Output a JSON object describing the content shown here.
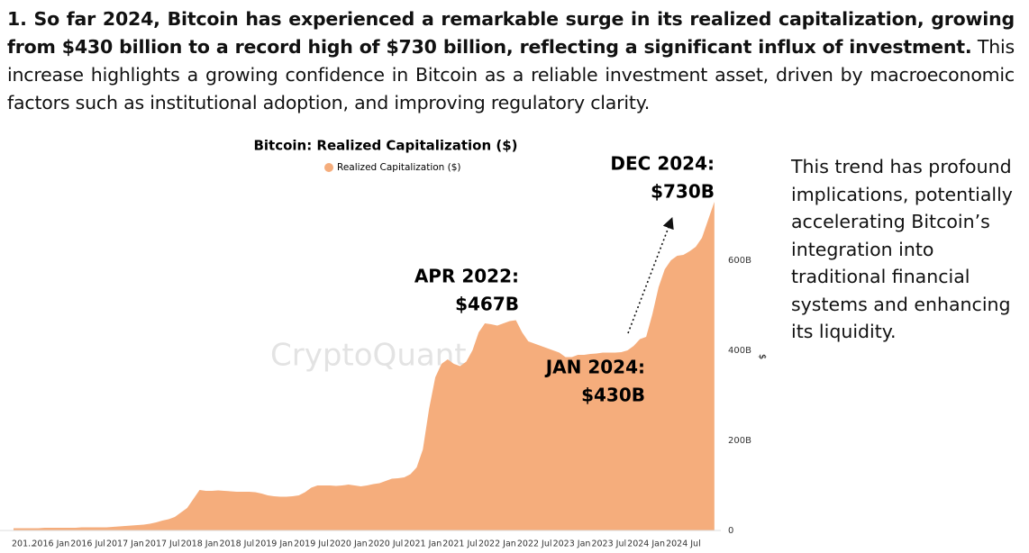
{
  "paragraph": {
    "bold": "1. So far 2024, Bitcoin has experienced a remarkable surge in its realized capitalization, growing from $430 billion to a record high of $730 billion, reflecting a significant influx of investment.",
    "normal": "This increase highlights a growing confidence in Bitcoin as a reliable investment asset, driven by macroeconomic factors such as institutional adoption, and improving regulatory clarity."
  },
  "side_text": "This trend has profound implications, potentially accelerating Bitcoin’s integration into traditional financial systems and enhancing its liquidity.",
  "chart_data": {
    "type": "area",
    "title": "Bitcoin: Realized Capitalization ($)",
    "y_label": "$",
    "watermark": "CryptoQuant",
    "grid": false,
    "legend": "top",
    "x": [
      "2015 Jul",
      "2015 Aug",
      "2015 Sep",
      "2015 Oct",
      "2015 Nov",
      "2015 Dec",
      "2016 Jan",
      "2016 Feb",
      "2016 Mar",
      "2016 Apr",
      "2016 May",
      "2016 Jun",
      "2016 Jul",
      "2016 Aug",
      "2016 Sep",
      "2016 Oct",
      "2016 Nov",
      "2016 Dec",
      "2017 Jan",
      "2017 Feb",
      "2017 Mar",
      "2017 Apr",
      "2017 May",
      "2017 Jun",
      "2017 Jul",
      "2017 Aug",
      "2017 Sep",
      "2017 Oct",
      "2017 Nov",
      "2017 Dec",
      "2018 Jan",
      "2018 Feb",
      "2018 Mar",
      "2018 Apr",
      "2018 May",
      "2018 Jun",
      "2018 Jul",
      "2018 Aug",
      "2018 Sep",
      "2018 Oct",
      "2018 Nov",
      "2018 Dec",
      "2019 Jan",
      "2019 Feb",
      "2019 Mar",
      "2019 Apr",
      "2019 May",
      "2019 Jun",
      "2019 Jul",
      "2019 Aug",
      "2019 Sep",
      "2019 Oct",
      "2019 Nov",
      "2019 Dec",
      "2020 Jan",
      "2020 Feb",
      "2020 Mar",
      "2020 Apr",
      "2020 May",
      "2020 Jun",
      "2020 Jul",
      "2020 Aug",
      "2020 Sep",
      "2020 Oct",
      "2020 Nov",
      "2020 Dec",
      "2021 Jan",
      "2021 Feb",
      "2021 Mar",
      "2021 Apr",
      "2021 May",
      "2021 Jun",
      "2021 Jul",
      "2021 Aug",
      "2021 Sep",
      "2021 Oct",
      "2021 Nov",
      "2021 Dec",
      "2022 Jan",
      "2022 Feb",
      "2022 Mar",
      "2022 Apr",
      "2022 May",
      "2022 Jun",
      "2022 Jul",
      "2022 Aug",
      "2022 Sep",
      "2022 Oct",
      "2022 Nov",
      "2022 Dec",
      "2023 Jan",
      "2023 Feb",
      "2023 Mar",
      "2023 Apr",
      "2023 May",
      "2023 Jun",
      "2023 Jul",
      "2023 Aug",
      "2023 Sep",
      "2023 Oct",
      "2023 Nov",
      "2023 Dec",
      "2024 Jan",
      "2024 Feb",
      "2024 Mar",
      "2024 Apr",
      "2024 May",
      "2024 Jun",
      "2024 Jul",
      "2024 Aug",
      "2024 Sep",
      "2024 Oct",
      "2024 Nov",
      "2024 Dec"
    ],
    "series": [
      {
        "name": "Realized Capitalization ($)",
        "color": "#f5ad7c",
        "values": [
          5,
          5,
          5,
          5,
          5,
          6,
          6,
          6,
          6,
          6,
          6,
          7,
          7,
          7,
          7,
          7,
          8,
          9,
          10,
          11,
          12,
          13,
          15,
          18,
          22,
          25,
          30,
          40,
          50,
          70,
          90,
          88,
          88,
          89,
          88,
          87,
          86,
          86,
          86,
          85,
          82,
          78,
          76,
          75,
          75,
          76,
          78,
          85,
          95,
          100,
          100,
          100,
          99,
          100,
          102,
          100,
          98,
          100,
          103,
          105,
          110,
          115,
          116,
          118,
          125,
          140,
          180,
          270,
          340,
          370,
          380,
          370,
          365,
          375,
          400,
          440,
          460,
          458,
          455,
          460,
          465,
          467,
          440,
          420,
          415,
          410,
          405,
          400,
          395,
          385,
          385,
          390,
          390,
          392,
          393,
          395,
          395,
          395,
          396,
          400,
          410,
          425,
          430,
          480,
          540,
          580,
          600,
          610,
          612,
          620,
          630,
          650,
          690,
          730
        ]
      }
    ],
    "xticks": [
      {
        "value": "2015 Jul",
        "label": "201..."
      },
      "2016 Jan",
      "2016 Jul",
      "2017 Jan",
      "2017 Jul",
      "2018 Jan",
      "2018 Jul",
      "2019 Jan",
      "2019 Jul",
      "2020 Jan",
      "2020 Jul",
      "2021 Jan",
      "2021 Jul",
      "2022 Jan",
      "2022 Jul",
      "2023 Jan",
      "2023 Jul",
      "2024 Jan",
      "2024 Jul"
    ],
    "ylim": [
      0,
      760
    ],
    "yticks": [
      0,
      {
        "value": 200,
        "label": "200B"
      },
      {
        "value": 400,
        "label": "400B"
      },
      {
        "value": 600,
        "label": "600B"
      }
    ],
    "annotations": [
      {
        "date": "APR 2022:",
        "value": "$467B"
      },
      {
        "date": "JAN 2024:",
        "value": "$430B"
      },
      {
        "date": "DEC 2024:",
        "value": "$730B"
      }
    ]
  }
}
